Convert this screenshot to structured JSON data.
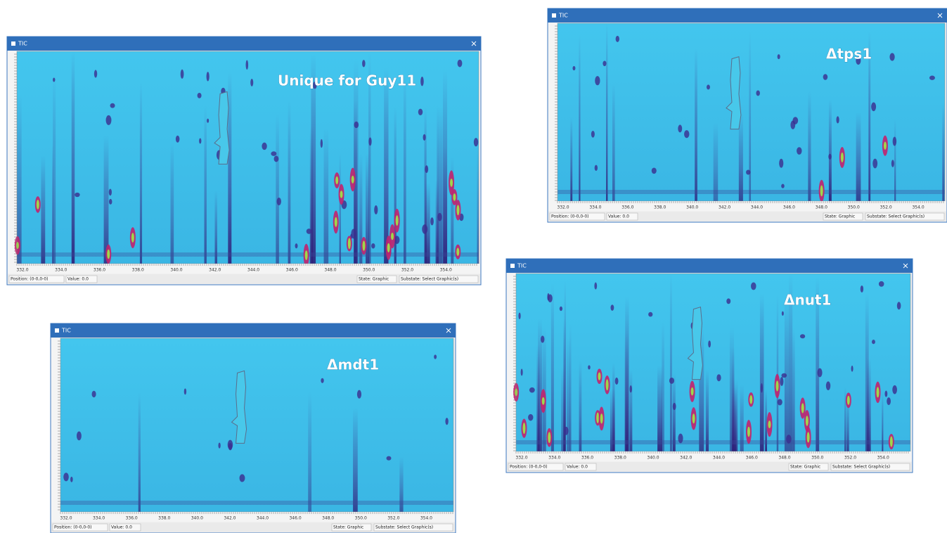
{
  "windows": [
    {
      "title": "TIC",
      "label": "Unique for Guy11",
      "x_ticks": [
        "332.0",
        "334.0",
        "336.0",
        "338.0",
        "340.0",
        "342.0",
        "344.0",
        "346.0",
        "348.0",
        "350.0",
        "352.0",
        "354.0"
      ],
      "status": {
        "position": "Position: (0-0,0-0)",
        "value": "Value: 0.0",
        "state": "State: Graphic",
        "substate": "Substate: Select Graphic(s)"
      }
    },
    {
      "title": "TIC",
      "label": "Δtps1",
      "x_ticks": [
        "332.0",
        "334.0",
        "336.0",
        "338.0",
        "340.0",
        "342.0",
        "344.0",
        "346.0",
        "348.0",
        "350.0",
        "352.0",
        "354.0"
      ],
      "status": {
        "position": "Position: (0-0,0-0)",
        "value": "Value: 0.0",
        "state": "State: Graphic",
        "substate": "Substate: Select Graphic(s)"
      }
    },
    {
      "title": "TIC",
      "label": "Δmdt1",
      "x_ticks": [
        "332.0",
        "334.0",
        "336.0",
        "338.0",
        "340.0",
        "342.0",
        "344.0",
        "346.0",
        "348.0",
        "350.0",
        "352.0",
        "354.0"
      ],
      "status": {
        "position": "Position: (0-0,0-0)",
        "value": "Value: 0.0",
        "state": "State: Graphic",
        "substate": "Substate: Select Graphic(s)"
      }
    },
    {
      "title": "TIC",
      "label": "Δnut1",
      "x_ticks": [
        "332.0",
        "334.0",
        "336.0",
        "338.0",
        "340.0",
        "342.0",
        "344.0",
        "346.0",
        "348.0",
        "350.0",
        "352.0",
        "354.0"
      ],
      "status": {
        "position": "Position: (0-0,0-0)",
        "value": "Value: 0.0",
        "state": "State: Graphic",
        "substate": "Substate: Select Graphic(s)"
      }
    }
  ]
}
